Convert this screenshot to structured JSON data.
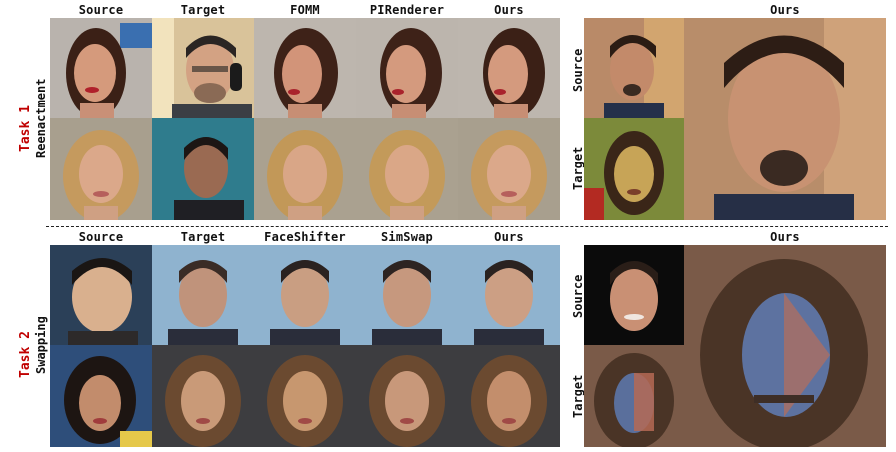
{
  "colors": {
    "task_label": "#c00000",
    "text": "#111111"
  },
  "task1": {
    "label": "Task 1",
    "sublabel": "Reenactment",
    "columns": [
      "Source",
      "Target",
      "FOMM",
      "PIRenderer",
      "Ours"
    ],
    "side_header": "Ours",
    "side_rows": [
      "Source",
      "Target"
    ]
  },
  "task2": {
    "label": "Task 2",
    "sublabel": "Swapping",
    "columns": [
      "Source",
      "Target",
      "FaceShifter",
      "SimSwap",
      "Ours"
    ],
    "side_header": "Ours",
    "side_rows": [
      "Source",
      "Target"
    ]
  }
}
